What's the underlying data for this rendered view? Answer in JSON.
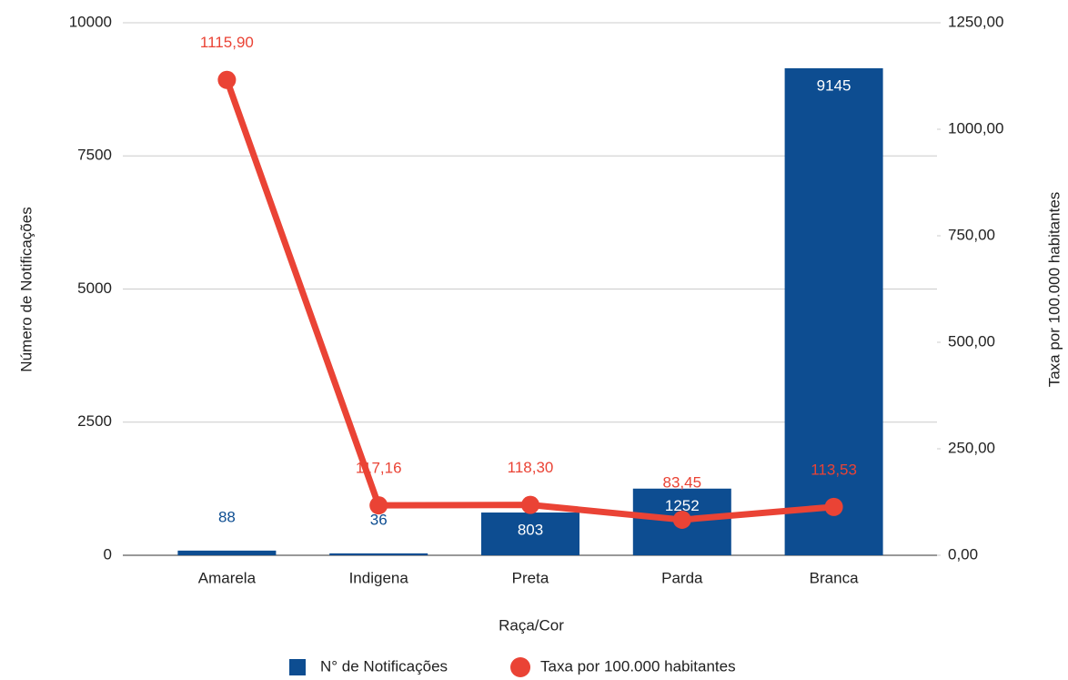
{
  "chart_data": {
    "type": "combo",
    "x_label": "Raça/Cor",
    "y_label": "Número de Notificações",
    "y2_label": "Taxa por 100.000 habitantes",
    "categories": [
      "Amarela",
      "Indigena",
      "Preta",
      "Parda",
      "Branca"
    ],
    "series": [
      {
        "name": "N° de Notificações",
        "type": "bar",
        "color": "#0d4d91",
        "values": [
          88,
          36,
          803,
          1252,
          9145
        ]
      },
      {
        "name": "Taxa por 100.000 habitantes",
        "type": "line",
        "axis": "y2",
        "color": "#ea4335",
        "values": [
          1115.9,
          117.16,
          118.3,
          83.45,
          113.53
        ],
        "value_labels": [
          "1115,90",
          "117,16",
          "118,30",
          "83,45",
          "113,53"
        ]
      }
    ],
    "ylim": [
      0,
      10000
    ],
    "yticks": [
      0,
      2500,
      5000,
      7500,
      10000
    ],
    "y2lim": [
      0,
      1250
    ],
    "y2ticks": [
      {
        "value": 0,
        "label": "0,00"
      },
      {
        "value": 250,
        "label": "250,00"
      },
      {
        "value": 500,
        "label": "500,00"
      },
      {
        "value": 750,
        "label": "750,00"
      },
      {
        "value": 1000,
        "label": "1000,00"
      },
      {
        "value": 1250,
        "label": "1250,00"
      }
    ],
    "grid": true,
    "legend": "bottom"
  }
}
